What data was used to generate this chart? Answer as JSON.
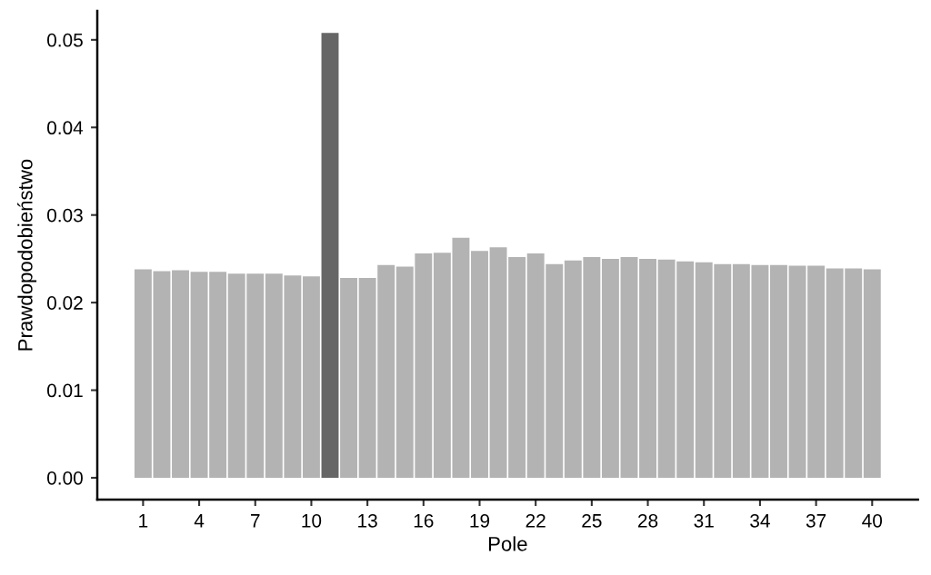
{
  "chart_data": {
    "type": "bar",
    "xlabel": "Pole",
    "ylabel": "Prawdopodobieństwo",
    "x": [
      1,
      2,
      3,
      4,
      5,
      6,
      7,
      8,
      9,
      10,
      11,
      12,
      13,
      14,
      15,
      16,
      17,
      18,
      19,
      20,
      21,
      22,
      23,
      24,
      25,
      26,
      27,
      28,
      29,
      30,
      31,
      32,
      33,
      34,
      35,
      36,
      37,
      38,
      39,
      40
    ],
    "values": [
      0.0238,
      0.0236,
      0.0237,
      0.0235,
      0.0235,
      0.0233,
      0.0233,
      0.0233,
      0.0231,
      0.023,
      0.0508,
      0.0228,
      0.0228,
      0.0243,
      0.0241,
      0.0256,
      0.0257,
      0.0274,
      0.0259,
      0.0263,
      0.0252,
      0.0256,
      0.0244,
      0.0248,
      0.0252,
      0.025,
      0.0252,
      0.025,
      0.0249,
      0.0247,
      0.0246,
      0.0244,
      0.0244,
      0.0243,
      0.0243,
      0.0242,
      0.0242,
      0.0239,
      0.0239,
      0.0238
    ],
    "colors": [
      "#b3b3b3",
      "#b3b3b3",
      "#b3b3b3",
      "#b3b3b3",
      "#b3b3b3",
      "#b3b3b3",
      "#b3b3b3",
      "#b3b3b3",
      "#b3b3b3",
      "#b3b3b3",
      "#666666",
      "#b3b3b3",
      "#b3b3b3",
      "#b3b3b3",
      "#b3b3b3",
      "#b3b3b3",
      "#b3b3b3",
      "#b3b3b3",
      "#b3b3b3",
      "#b3b3b3",
      "#b3b3b3",
      "#b3b3b3",
      "#b3b3b3",
      "#b3b3b3",
      "#b3b3b3",
      "#b3b3b3",
      "#b3b3b3",
      "#b3b3b3",
      "#b3b3b3",
      "#b3b3b3",
      "#b3b3b3",
      "#b3b3b3",
      "#b3b3b3",
      "#b3b3b3",
      "#b3b3b3",
      "#b3b3b3",
      "#b3b3b3",
      "#b3b3b3",
      "#b3b3b3",
      "#b3b3b3"
    ],
    "xlim": [
      -1.45,
      42.45
    ],
    "xticks": [
      1,
      4,
      7,
      10,
      13,
      16,
      19,
      22,
      25,
      28,
      31,
      34,
      37,
      40
    ],
    "ylim": [
      -0.0025,
      0.0533
    ],
    "yticks": [
      {
        "value": 0,
        "label": "0.00"
      },
      0.01,
      0.02,
      0.03,
      0.04,
      0.05
    ],
    "grid": false,
    "legend": false
  }
}
